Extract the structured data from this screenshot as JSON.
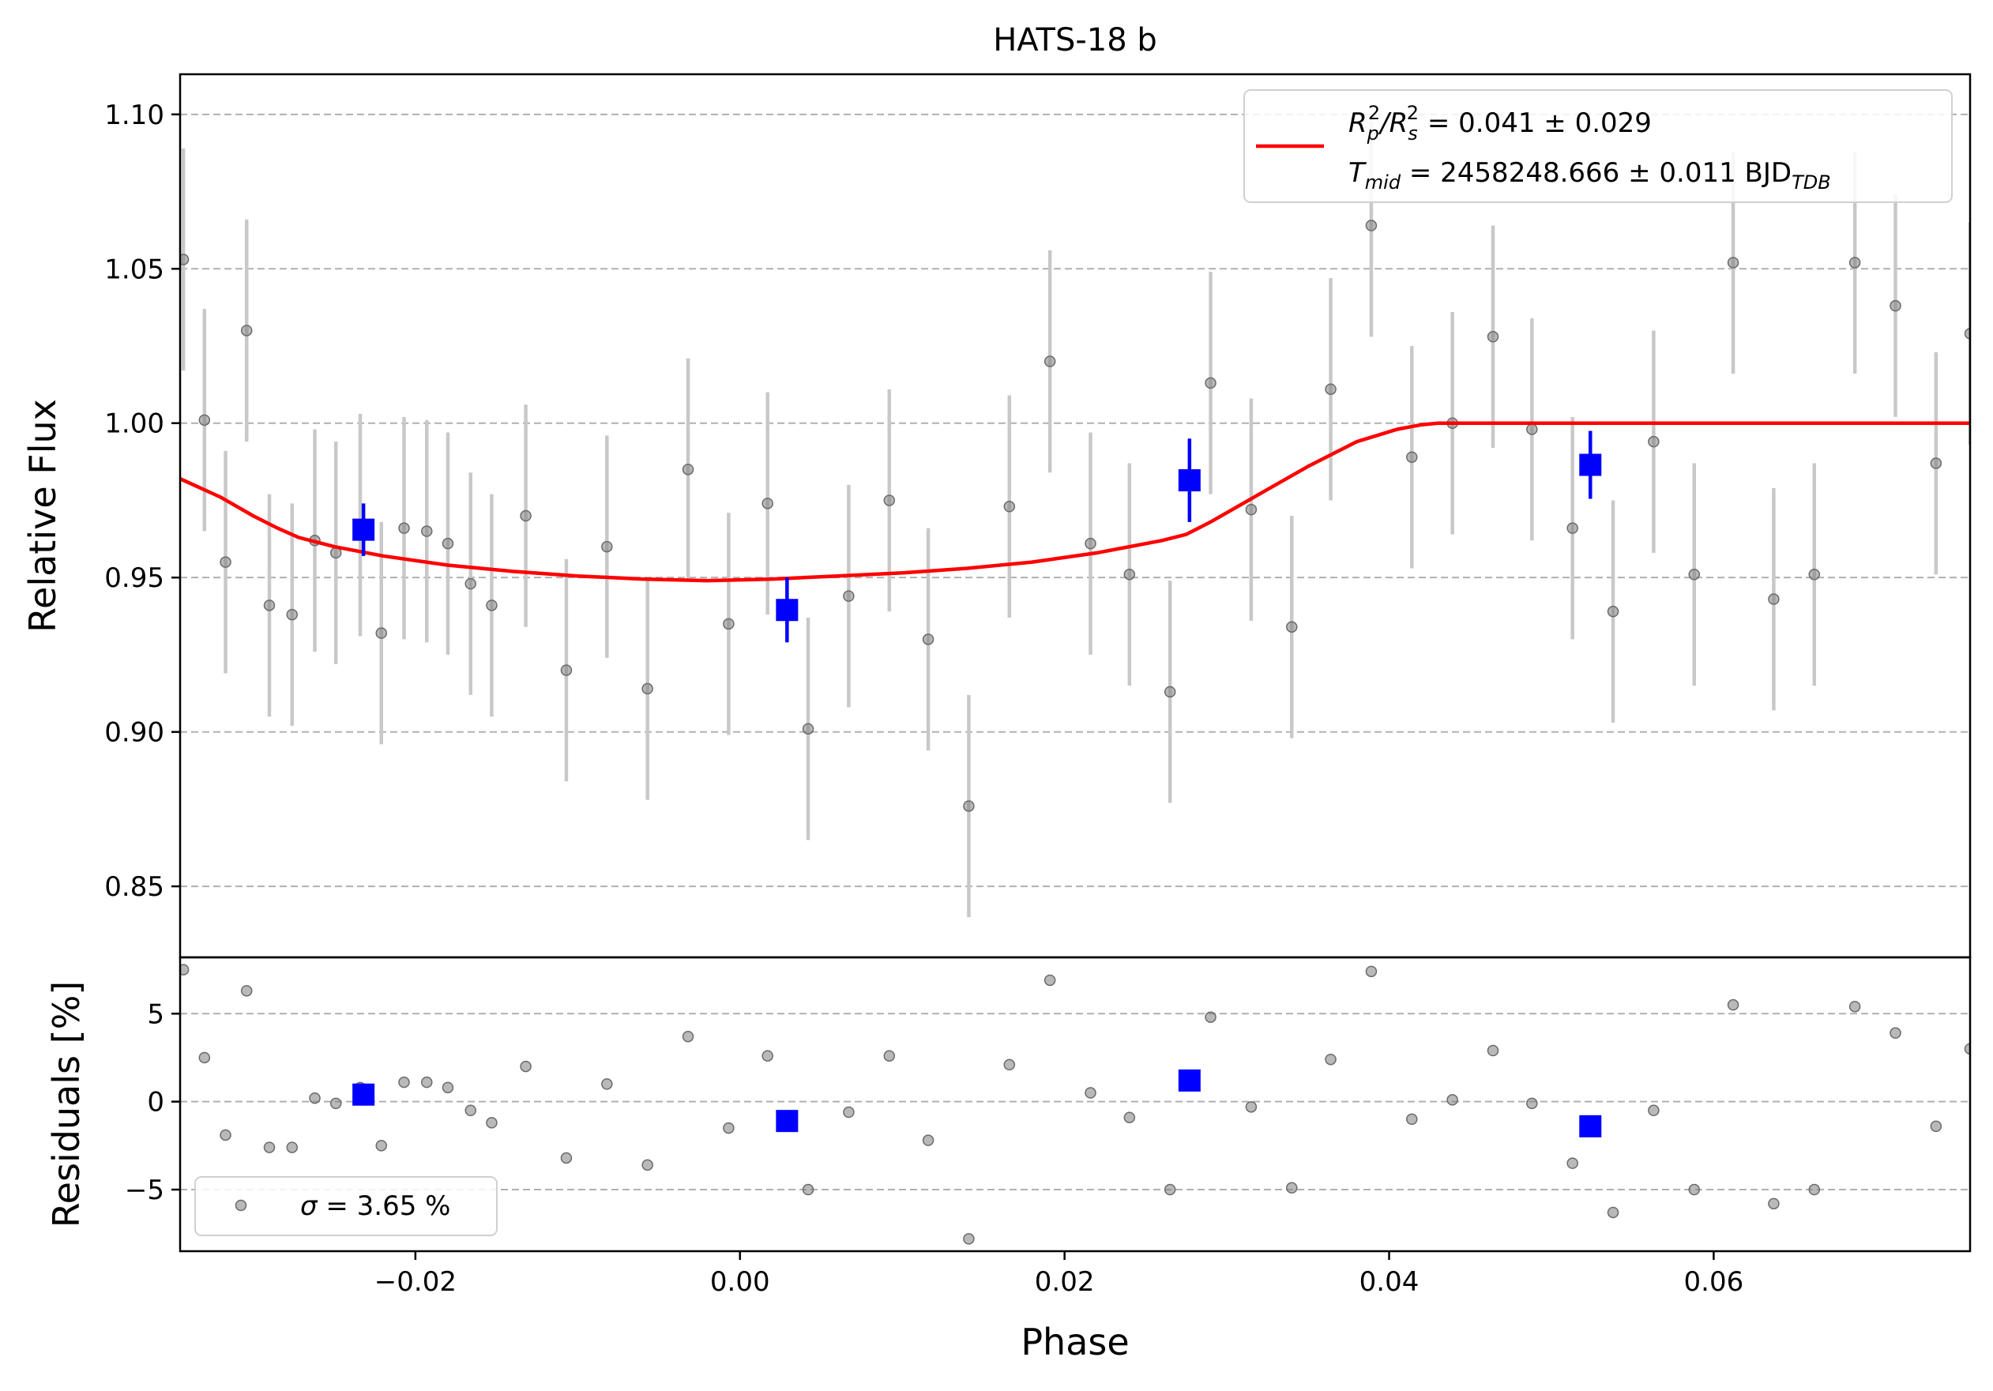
{
  "chart_data": {
    "type": "scatter",
    "title": "HATS-18 b",
    "xlabel": "Phase",
    "xlim": [
      -0.0345,
      0.0758
    ],
    "x_ticks": [
      -0.02,
      0.0,
      0.02,
      0.04,
      0.06
    ],
    "x_tick_labels": [
      "−0.02",
      "0.00",
      "0.02",
      "0.04",
      "0.06"
    ],
    "grid": "horizontal dashed",
    "colors": {
      "raw": "#808080",
      "errorbar_raw": "#c8c8c8",
      "binned": "#0000ff",
      "model": "#ff0000",
      "grid": "#b0b0b0"
    },
    "top_panel": {
      "ylabel": "Relative Flux",
      "ylim": [
        0.827,
        1.113
      ],
      "y_ticks": [
        0.85,
        0.9,
        0.95,
        1.0,
        1.05,
        1.1
      ],
      "y_tick_labels": [
        "0.85",
        "0.90",
        "0.95",
        "1.00",
        "1.05",
        "1.10"
      ],
      "legend": {
        "position": "top-right",
        "line1_pre": "R",
        "line1_sub1": "p",
        "line1_sup1": "2",
        "line1_slash": "/R",
        "line1_sub2": "s",
        "line1_sup2": "2",
        "line1_value": " = 0.041 ± 0.029",
        "line2_pre": "T",
        "line2_sub": "mid",
        "line2_value": " = 2458248.666 ± 0.011 BJD",
        "line2_unit_sub": "TDB"
      },
      "raw": {
        "x": [
          -0.0343,
          -0.033,
          -0.0317,
          -0.0304,
          -0.029,
          -0.0276,
          -0.0262,
          -0.0249,
          -0.0234,
          -0.0221,
          -0.0207,
          -0.0193,
          -0.018,
          -0.0166,
          -0.0153,
          -0.0132,
          -0.0107,
          -0.0082,
          -0.0057,
          -0.0032,
          -0.0007,
          0.0017,
          0.0042,
          0.0067,
          0.0092,
          0.0116,
          0.0141,
          0.0166,
          0.0191,
          0.0216,
          0.024,
          0.0265,
          0.029,
          0.0315,
          0.034,
          0.0364,
          0.0389,
          0.0414,
          0.0439,
          0.0464,
          0.0488,
          0.0513,
          0.0538,
          0.0563,
          0.0588,
          0.0612,
          0.0637,
          0.0662,
          0.0687,
          0.0712,
          0.0737,
          0.0758
        ],
        "y": [
          1.053,
          1.001,
          0.955,
          1.03,
          0.941,
          0.938,
          0.962,
          0.958,
          0.967,
          0.932,
          0.966,
          0.965,
          0.961,
          0.948,
          0.941,
          0.97,
          0.92,
          0.96,
          0.914,
          0.985,
          0.935,
          0.974,
          0.901,
          0.944,
          0.975,
          0.93,
          0.876,
          0.973,
          1.02,
          0.961,
          0.951,
          0.913,
          1.013,
          0.972,
          0.934,
          1.011,
          1.064,
          0.989,
          1.0,
          1.028,
          0.998,
          0.966,
          0.939,
          0.994,
          0.951,
          1.052,
          0.943,
          0.951,
          1.052,
          1.038,
          0.987,
          1.029
        ],
        "yerr": 0.036
      },
      "binned": {
        "x": [
          -0.0232,
          0.0029,
          0.0277,
          0.0524
        ],
        "y": [
          0.9655,
          0.9395,
          0.9815,
          0.9865
        ],
        "yerr": [
          0.0085,
          0.0105,
          0.0135,
          0.011
        ]
      },
      "model": {
        "x": [
          -0.0345,
          -0.032,
          -0.03,
          -0.0285,
          -0.0272,
          -0.025,
          -0.022,
          -0.018,
          -0.014,
          -0.01,
          -0.006,
          -0.002,
          0.002,
          0.006,
          0.01,
          0.014,
          0.018,
          0.022,
          0.026,
          0.0275,
          0.029,
          0.032,
          0.035,
          0.038,
          0.0405,
          0.042,
          0.043,
          0.044,
          0.05,
          0.06,
          0.07,
          0.0758
        ],
        "y": [
          0.982,
          0.976,
          0.97,
          0.966,
          0.963,
          0.96,
          0.957,
          0.954,
          0.952,
          0.9505,
          0.9495,
          0.949,
          0.9495,
          0.9505,
          0.9515,
          0.953,
          0.955,
          0.958,
          0.962,
          0.964,
          0.968,
          0.977,
          0.986,
          0.994,
          0.998,
          0.9995,
          1.0,
          1.0,
          1.0,
          1.0,
          1.0,
          1.0
        ]
      }
    },
    "bottom_panel": {
      "ylabel": "Residuals [%]",
      "ylim": [
        -8.5,
        8.2
      ],
      "y_ticks": [
        -5,
        0,
        5
      ],
      "y_tick_labels": [
        "−5",
        "0",
        "5"
      ],
      "legend": {
        "position": "bottom-left",
        "pre": "σ",
        "value": " = 3.65 %"
      },
      "raw": {
        "x": [
          -0.0343,
          -0.033,
          -0.0317,
          -0.0304,
          -0.029,
          -0.0276,
          -0.0262,
          -0.0249,
          -0.0234,
          -0.0221,
          -0.0207,
          -0.0193,
          -0.018,
          -0.0166,
          -0.0153,
          -0.0132,
          -0.0107,
          -0.0082,
          -0.0057,
          -0.0032,
          -0.0007,
          0.0017,
          0.0042,
          0.0067,
          0.0092,
          0.0116,
          0.0141,
          0.0166,
          0.0191,
          0.0216,
          0.024,
          0.0265,
          0.029,
          0.0315,
          0.034,
          0.0364,
          0.0389,
          0.0414,
          0.0439,
          0.0464,
          0.0488,
          0.0513,
          0.0538,
          0.0563,
          0.0588,
          0.0612,
          0.0637,
          0.0662,
          0.0687,
          0.0712,
          0.0737,
          0.0758
        ],
        "y": [
          7.5,
          2.5,
          -1.9,
          6.3,
          -2.6,
          -2.6,
          0.2,
          -0.1,
          0.8,
          -2.5,
          1.1,
          1.1,
          0.8,
          -0.5,
          -1.2,
          2.0,
          -3.2,
          1.0,
          -3.6,
          3.7,
          -1.5,
          2.6,
          -5.0,
          -0.6,
          2.6,
          -2.2,
          -7.8,
          2.1,
          6.9,
          0.5,
          -0.9,
          -5.0,
          4.8,
          -0.3,
          -4.9,
          2.4,
          7.4,
          -1.0,
          0.1,
          2.9,
          -0.1,
          -3.5,
          -6.3,
          -0.5,
          -5.0,
          5.5,
          -5.8,
          -5.0,
          5.4,
          3.9,
          -1.4,
          3.0
        ]
      },
      "binned": {
        "x": [
          -0.0232,
          0.0029,
          0.0277,
          0.0524
        ],
        "y": [
          0.4,
          -1.1,
          1.2,
          -1.4
        ]
      }
    }
  }
}
